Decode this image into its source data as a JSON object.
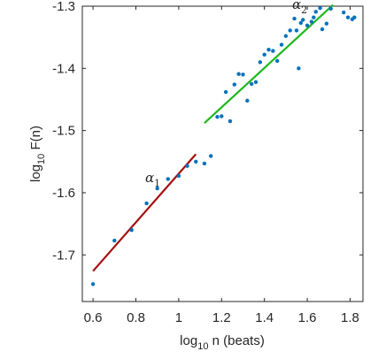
{
  "chart_data": {
    "type": "scatter",
    "title": "",
    "xlabel": {
      "main": "log",
      "sub": "10",
      "rest": " n (beats)"
    },
    "ylabel": {
      "main": "log",
      "sub": "10",
      "rest": " F(n)"
    },
    "xlim": [
      0.55,
      1.86
    ],
    "ylim": [
      -1.775,
      -1.3
    ],
    "grid": false,
    "box": true,
    "x_ticks": [
      0.6,
      0.8,
      1.0,
      1.2,
      1.4,
      1.6,
      1.8
    ],
    "x_tick_labels": [
      "0.6",
      "0.8",
      "1",
      "1.2",
      "1.4",
      "1.6",
      "1.8"
    ],
    "y_ticks": [
      -1.7,
      -1.6,
      -1.5,
      -1.4,
      -1.3
    ],
    "y_tick_labels": [
      "-1.7",
      "-1.6",
      "-1.5",
      "-1.4",
      "-1.3"
    ],
    "series": [
      {
        "type": "scatter",
        "color": "#0072BD",
        "points": [
          [
            0.6,
            -1.747
          ],
          [
            0.7,
            -1.677
          ],
          [
            0.78,
            -1.66
          ],
          [
            0.85,
            -1.617
          ],
          [
            0.9,
            -1.593
          ],
          [
            0.95,
            -1.578
          ],
          [
            1.0,
            -1.573
          ],
          [
            1.04,
            -1.557
          ],
          [
            1.08,
            -1.55
          ],
          [
            1.12,
            -1.553
          ],
          [
            1.15,
            -1.541
          ],
          [
            1.18,
            -1.478
          ],
          [
            1.2,
            -1.477
          ],
          [
            1.22,
            -1.438
          ],
          [
            1.24,
            -1.485
          ],
          [
            1.26,
            -1.426
          ],
          [
            1.28,
            -1.409
          ],
          [
            1.3,
            -1.41
          ],
          [
            1.32,
            -1.452
          ],
          [
            1.34,
            -1.425
          ],
          [
            1.36,
            -1.422
          ],
          [
            1.38,
            -1.39
          ],
          [
            1.4,
            -1.378
          ],
          [
            1.42,
            -1.37
          ],
          [
            1.44,
            -1.372
          ],
          [
            1.46,
            -1.388
          ],
          [
            1.48,
            -1.362
          ],
          [
            1.5,
            -1.348
          ],
          [
            1.52,
            -1.339
          ],
          [
            1.54,
            -1.32
          ],
          [
            1.55,
            -1.339
          ],
          [
            1.56,
            -1.4
          ],
          [
            1.57,
            -1.327
          ],
          [
            1.58,
            -1.322
          ],
          [
            1.6,
            -1.331
          ],
          [
            1.62,
            -1.325
          ],
          [
            1.63,
            -1.318
          ],
          [
            1.64,
            -1.309
          ],
          [
            1.66,
            -1.303
          ],
          [
            1.67,
            -1.337
          ],
          [
            1.69,
            -1.328
          ],
          [
            1.71,
            -1.304
          ],
          [
            1.73,
            -1.298
          ],
          [
            1.77,
            -1.31
          ],
          [
            1.79,
            -1.318
          ],
          [
            1.81,
            -1.321
          ],
          [
            1.82,
            -1.318
          ]
        ]
      },
      {
        "type": "line",
        "label_prefix": "α",
        "label_sub": "1",
        "color": "#A50F0F",
        "points": [
          [
            0.6,
            -1.726
          ],
          [
            1.08,
            -1.538
          ]
        ]
      },
      {
        "type": "line",
        "label_prefix": "α",
        "label_sub": "2",
        "color": "#1DB81D",
        "points": [
          [
            1.12,
            -1.488
          ],
          [
            1.72,
            -1.298
          ]
        ]
      }
    ],
    "annotations": [
      {
        "text": "α",
        "sub": "1"
      },
      {
        "text": "α",
        "sub": "2"
      }
    ]
  }
}
